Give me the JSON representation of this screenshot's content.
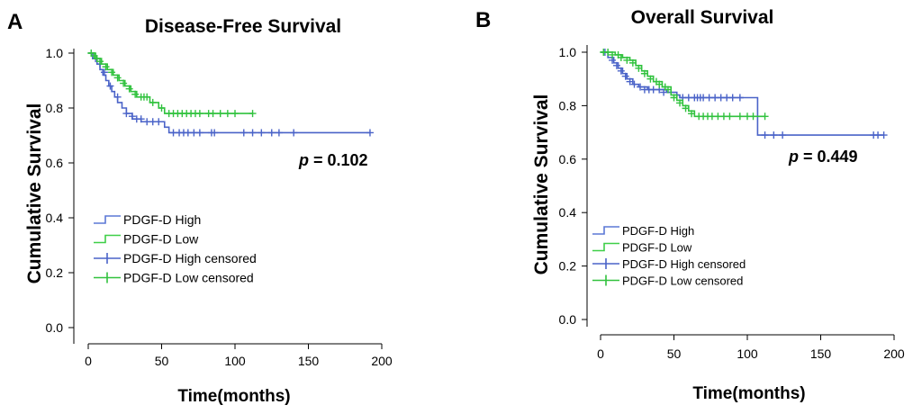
{
  "figure": {
    "colors": {
      "high": "#4a63c8",
      "low": "#31c23e",
      "high_light": "#5b78d6",
      "low_light": "#3fcf48",
      "axis": "#000000"
    }
  },
  "chart_data": [
    {
      "type": "line",
      "panel_label": "A",
      "title": "Disease-Free Survival",
      "xlabel": "Time(months)",
      "ylabel": "Cumulative Survival",
      "xlim": [
        0,
        200
      ],
      "ylim": [
        0,
        1.0
      ],
      "x_ticks": [
        0,
        50,
        100,
        150,
        200
      ],
      "x_tick_labels": [
        "0",
        "50",
        "100",
        "150",
        "200"
      ],
      "y_ticks": [
        0,
        0.2,
        0.4,
        0.6,
        0.8,
        1.0
      ],
      "y_tick_labels": [
        "0.0",
        "0.2",
        "0.4",
        "0.6",
        "0.8",
        "1.0"
      ],
      "p_value_label": "p",
      "p_value": "= 0.102",
      "legend": {
        "position": "bottom-left",
        "entries": [
          "PDGF-D High",
          "PDGF-D Low",
          "PDGF-D High censored",
          "PDGF-D Low censored"
        ]
      },
      "series": [
        {
          "name": "PDGF-D High",
          "style": "step",
          "points": [
            [
              0,
              1.0
            ],
            [
              3,
              0.98
            ],
            [
              6,
              0.96
            ],
            [
              8,
              0.94
            ],
            [
              10,
              0.92
            ],
            [
              12,
              0.9
            ],
            [
              14,
              0.88
            ],
            [
              16,
              0.86
            ],
            [
              18,
              0.84
            ],
            [
              20,
              0.82
            ],
            [
              23,
              0.8
            ],
            [
              26,
              0.78
            ],
            [
              30,
              0.76
            ],
            [
              36,
              0.75
            ],
            [
              52,
              0.73
            ],
            [
              55,
              0.71
            ],
            [
              192,
              0.71
            ]
          ],
          "censored": [
            [
              5,
              0.98
            ],
            [
              8,
              0.96
            ],
            [
              11,
              0.93
            ],
            [
              15,
              0.88
            ],
            [
              20,
              0.84
            ],
            [
              26,
              0.78
            ],
            [
              30,
              0.77
            ],
            [
              33,
              0.76
            ],
            [
              36,
              0.76
            ],
            [
              40,
              0.75
            ],
            [
              44,
              0.75
            ],
            [
              48,
              0.75
            ],
            [
              58,
              0.71
            ],
            [
              62,
              0.71
            ],
            [
              65,
              0.71
            ],
            [
              68,
              0.71
            ],
            [
              72,
              0.71
            ],
            [
              76,
              0.71
            ],
            [
              84,
              0.71
            ],
            [
              86,
              0.71
            ],
            [
              106,
              0.71
            ],
            [
              112,
              0.71
            ],
            [
              118,
              0.71
            ],
            [
              125,
              0.71
            ],
            [
              130,
              0.71
            ],
            [
              140,
              0.71
            ],
            [
              192,
              0.71
            ]
          ]
        },
        {
          "name": "PDGF-D Low",
          "style": "step",
          "points": [
            [
              0,
              1.0
            ],
            [
              5,
              0.98
            ],
            [
              9,
              0.96
            ],
            [
              13,
              0.94
            ],
            [
              17,
              0.92
            ],
            [
              21,
              0.9
            ],
            [
              25,
              0.88
            ],
            [
              29,
              0.86
            ],
            [
              33,
              0.84
            ],
            [
              42,
              0.82
            ],
            [
              48,
              0.8
            ],
            [
              52,
              0.78
            ],
            [
              112,
              0.78
            ]
          ],
          "censored": [
            [
              2,
              1.0
            ],
            [
              4,
              0.99
            ],
            [
              6,
              0.98
            ],
            [
              8,
              0.97
            ],
            [
              12,
              0.95
            ],
            [
              16,
              0.93
            ],
            [
              20,
              0.91
            ],
            [
              24,
              0.89
            ],
            [
              28,
              0.87
            ],
            [
              32,
              0.85
            ],
            [
              36,
              0.84
            ],
            [
              38,
              0.84
            ],
            [
              40,
              0.84
            ],
            [
              44,
              0.82
            ],
            [
              50,
              0.8
            ],
            [
              55,
              0.78
            ],
            [
              58,
              0.78
            ],
            [
              61,
              0.78
            ],
            [
              64,
              0.78
            ],
            [
              67,
              0.78
            ],
            [
              70,
              0.78
            ],
            [
              73,
              0.78
            ],
            [
              76,
              0.78
            ],
            [
              82,
              0.78
            ],
            [
              85,
              0.78
            ],
            [
              90,
              0.78
            ],
            [
              95,
              0.78
            ],
            [
              100,
              0.78
            ],
            [
              112,
              0.78
            ]
          ]
        }
      ]
    },
    {
      "type": "line",
      "panel_label": "B",
      "title": "Overall Survival",
      "xlabel": "Time(months)",
      "ylabel": "Cumulative Survival",
      "xlim": [
        0,
        200
      ],
      "ylim": [
        0,
        1.0
      ],
      "x_ticks": [
        0,
        50,
        100,
        150,
        200
      ],
      "x_tick_labels": [
        "0",
        "50",
        "100",
        "150",
        "200"
      ],
      "y_ticks": [
        0,
        0.2,
        0.4,
        0.6,
        0.8,
        1.0
      ],
      "y_tick_labels": [
        "0.0",
        "0.2",
        "0.4",
        "0.6",
        "0.8",
        "1.0"
      ],
      "p_value_label": "p",
      "p_value": "= 0.449",
      "legend": {
        "position": "bottom-left",
        "entries": [
          "PDGF-D High",
          "PDGF-D Low",
          "PDGF-D High censored",
          "PDGF-D Low censored"
        ]
      },
      "series": [
        {
          "name": "PDGF-D High",
          "style": "step",
          "points": [
            [
              0,
              1.0
            ],
            [
              5,
              0.98
            ],
            [
              9,
              0.96
            ],
            [
              12,
              0.94
            ],
            [
              15,
              0.92
            ],
            [
              18,
              0.9
            ],
            [
              22,
              0.88
            ],
            [
              26,
              0.87
            ],
            [
              32,
              0.86
            ],
            [
              45,
              0.85
            ],
            [
              52,
              0.84
            ],
            [
              54,
              0.83
            ],
            [
              106,
              0.83
            ],
            [
              107,
              0.69
            ],
            [
              193,
              0.69
            ]
          ],
          "censored": [
            [
              3,
              1.0
            ],
            [
              8,
              0.97
            ],
            [
              11,
              0.95
            ],
            [
              14,
              0.93
            ],
            [
              17,
              0.91
            ],
            [
              20,
              0.89
            ],
            [
              23,
              0.88
            ],
            [
              27,
              0.87
            ],
            [
              30,
              0.86
            ],
            [
              33,
              0.86
            ],
            [
              36,
              0.86
            ],
            [
              40,
              0.86
            ],
            [
              43,
              0.85
            ],
            [
              56,
              0.83
            ],
            [
              60,
              0.83
            ],
            [
              64,
              0.83
            ],
            [
              66,
              0.83
            ],
            [
              68,
              0.83
            ],
            [
              70,
              0.83
            ],
            [
              74,
              0.83
            ],
            [
              78,
              0.83
            ],
            [
              82,
              0.83
            ],
            [
              86,
              0.83
            ],
            [
              90,
              0.83
            ],
            [
              95,
              0.83
            ],
            [
              112,
              0.69
            ],
            [
              118,
              0.69
            ],
            [
              124,
              0.69
            ],
            [
              186,
              0.69
            ],
            [
              189,
              0.69
            ],
            [
              193,
              0.69
            ]
          ]
        },
        {
          "name": "PDGF-D Low",
          "style": "step",
          "points": [
            [
              0,
              1.0
            ],
            [
              10,
              0.99
            ],
            [
              15,
              0.98
            ],
            [
              20,
              0.97
            ],
            [
              24,
              0.95
            ],
            [
              28,
              0.93
            ],
            [
              32,
              0.91
            ],
            [
              36,
              0.89
            ],
            [
              42,
              0.87
            ],
            [
              48,
              0.84
            ],
            [
              52,
              0.82
            ],
            [
              56,
              0.8
            ],
            [
              60,
              0.78
            ],
            [
              64,
              0.76
            ],
            [
              112,
              0.76
            ]
          ],
          "censored": [
            [
              2,
              1.0
            ],
            [
              5,
              1.0
            ],
            [
              8,
              0.99
            ],
            [
              12,
              0.99
            ],
            [
              14,
              0.98
            ],
            [
              18,
              0.97
            ],
            [
              22,
              0.96
            ],
            [
              26,
              0.94
            ],
            [
              30,
              0.92
            ],
            [
              34,
              0.9
            ],
            [
              38,
              0.89
            ],
            [
              40,
              0.88
            ],
            [
              44,
              0.87
            ],
            [
              46,
              0.86
            ],
            [
              50,
              0.83
            ],
            [
              54,
              0.81
            ],
            [
              58,
              0.79
            ],
            [
              62,
              0.77
            ],
            [
              67,
              0.76
            ],
            [
              70,
              0.76
            ],
            [
              73,
              0.76
            ],
            [
              76,
              0.76
            ],
            [
              80,
              0.76
            ],
            [
              84,
              0.76
            ],
            [
              88,
              0.76
            ],
            [
              95,
              0.76
            ],
            [
              100,
              0.76
            ],
            [
              104,
              0.76
            ],
            [
              112,
              0.76
            ]
          ]
        }
      ]
    }
  ]
}
